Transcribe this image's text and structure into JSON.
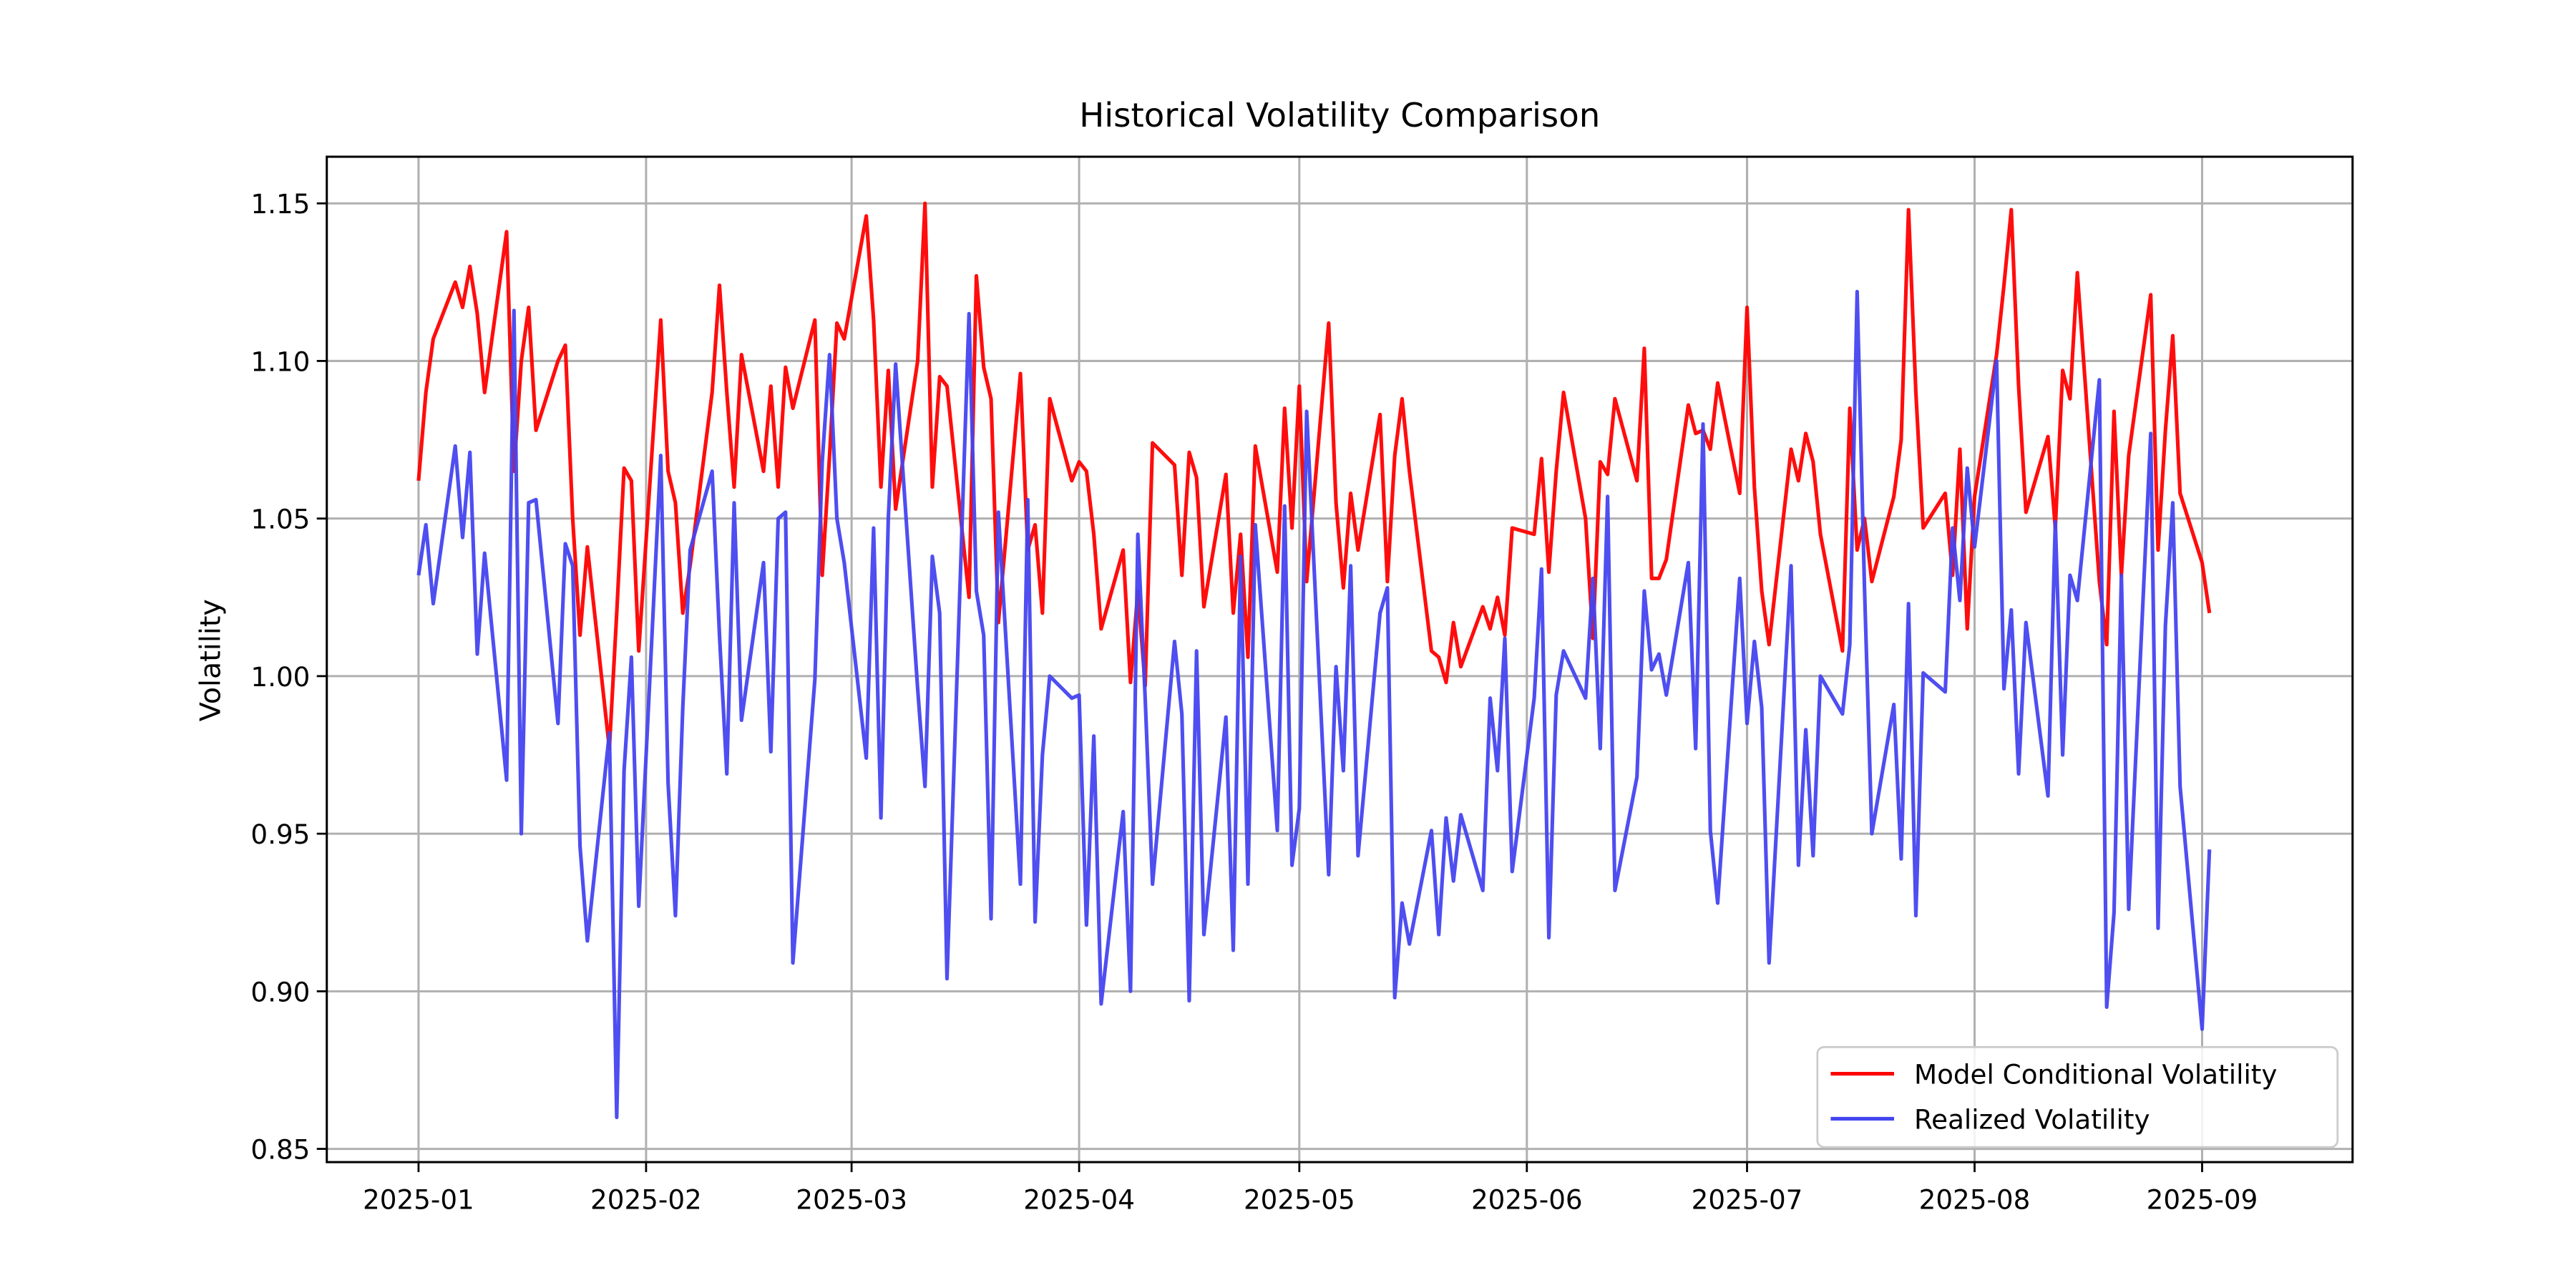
{
  "chart_data": {
    "type": "line",
    "title": "Historical Volatility Comparison",
    "ylabel": "Volatility",
    "x": [
      0,
      1,
      2,
      5,
      6,
      7,
      8,
      9,
      12,
      13,
      14,
      15,
      16,
      19,
      20,
      21,
      22,
      23,
      26,
      27,
      28,
      29,
      30,
      33,
      34,
      35,
      36,
      37,
      40,
      41,
      42,
      43,
      44,
      47,
      48,
      49,
      50,
      51,
      54,
      55,
      56,
      57,
      58,
      61,
      62,
      63,
      64,
      65,
      68,
      69,
      70,
      71,
      72,
      75,
      76,
      77,
      78,
      79,
      82,
      83,
      84,
      85,
      86,
      89,
      90,
      91,
      92,
      93,
      96,
      97,
      98,
      99,
      100,
      103,
      104,
      105,
      106,
      107,
      110,
      111,
      112,
      113,
      114,
      117,
      118,
      119,
      120,
      121,
      124,
      125,
      126,
      127,
      128,
      131,
      132,
      133,
      134,
      135,
      138,
      139,
      140,
      141,
      142,
      145,
      146,
      147,
      148,
      149,
      152,
      153,
      154,
      155,
      156,
      159,
      160,
      161,
      162,
      163,
      166,
      167,
      168,
      169,
      170,
      173,
      174,
      175,
      176,
      177,
      180,
      181,
      182,
      183,
      184,
      187,
      188,
      189,
      190,
      191,
      194,
      195,
      196,
      197,
      198,
      201,
      202,
      203,
      204,
      205,
      208,
      209,
      210,
      211,
      212,
      215,
      216,
      217,
      218,
      219,
      222,
      223,
      224,
      225,
      226,
      229,
      230,
      231,
      232,
      233,
      236,
      237,
      238,
      239,
      240,
      243,
      244
    ],
    "xlim": [
      -12.5,
      263.5
    ],
    "xticks": [
      {
        "value": 0,
        "label": "2025-01"
      },
      {
        "value": 31,
        "label": "2025-02"
      },
      {
        "value": 59,
        "label": "2025-03"
      },
      {
        "value": 90,
        "label": "2025-04"
      },
      {
        "value": 120,
        "label": "2025-05"
      },
      {
        "value": 151,
        "label": "2025-06"
      },
      {
        "value": 181,
        "label": "2025-07"
      },
      {
        "value": 212,
        "label": "2025-08"
      },
      {
        "value": 243,
        "label": "2025-09"
      }
    ],
    "ylim": [
      0.8458,
      1.1648
    ],
    "yticks": [
      0.85,
      {
        "value": 0.9,
        "label": "0.90"
      },
      0.95,
      {
        "value": 1.0,
        "label": "1.00"
      },
      1.05,
      {
        "value": 1.1,
        "label": "1.10"
      },
      1.15
    ],
    "grid": true,
    "legend": "lower right",
    "series": [
      {
        "name": "Model Conditional Volatility",
        "color": "#ff0000",
        "values": [
          1.062,
          1.09,
          1.107,
          1.125,
          1.117,
          1.13,
          1.115,
          1.09,
          1.141,
          1.065,
          1.1,
          1.117,
          1.078,
          1.1,
          1.105,
          1.05,
          1.013,
          1.041,
          0.977,
          1.02,
          1.066,
          1.062,
          1.008,
          1.113,
          1.065,
          1.055,
          1.02,
          1.035,
          1.09,
          1.124,
          1.09,
          1.06,
          1.102,
          1.065,
          1.092,
          1.06,
          1.098,
          1.085,
          1.113,
          1.032,
          1.07,
          1.112,
          1.107,
          1.146,
          1.113,
          1.06,
          1.097,
          1.053,
          1.1,
          1.15,
          1.06,
          1.095,
          1.092,
          1.025,
          1.127,
          1.098,
          1.088,
          1.017,
          1.096,
          1.04,
          1.048,
          1.02,
          1.088,
          1.062,
          1.068,
          1.065,
          1.045,
          1.015,
          1.04,
          0.998,
          1.027,
          0.997,
          1.074,
          1.067,
          1.032,
          1.071,
          1.063,
          1.022,
          1.064,
          1.02,
          1.045,
          1.006,
          1.073,
          1.033,
          1.085,
          1.047,
          1.092,
          1.03,
          1.112,
          1.055,
          1.028,
          1.058,
          1.04,
          1.083,
          1.03,
          1.07,
          1.088,
          1.065,
          1.008,
          1.006,
          0.998,
          1.017,
          1.003,
          1.022,
          1.015,
          1.025,
          1.013,
          1.047,
          1.045,
          1.069,
          1.033,
          1.065,
          1.09,
          1.05,
          1.012,
          1.068,
          1.064,
          1.088,
          1.062,
          1.104,
          1.031,
          1.031,
          1.037,
          1.086,
          1.077,
          1.078,
          1.072,
          1.093,
          1.058,
          1.117,
          1.06,
          1.027,
          1.01,
          1.072,
          1.062,
          1.077,
          1.068,
          1.045,
          1.008,
          1.085,
          1.04,
          1.05,
          1.03,
          1.057,
          1.075,
          1.148,
          1.09,
          1.047,
          1.058,
          1.032,
          1.072,
          1.015,
          1.057,
          1.102,
          1.124,
          1.148,
          1.092,
          1.052,
          1.076,
          1.047,
          1.097,
          1.088,
          1.128,
          1.03,
          1.01,
          1.084,
          1.032,
          1.07,
          1.121,
          1.04,
          1.078,
          1.108,
          1.058,
          1.036,
          1.02
        ]
      },
      {
        "name": "Realized Volatility",
        "color": "#4444f0",
        "values": [
          1.032,
          1.048,
          1.023,
          1.073,
          1.044,
          1.071,
          1.007,
          1.039,
          0.967,
          1.116,
          0.95,
          1.055,
          1.056,
          0.985,
          1.042,
          1.035,
          0.946,
          0.916,
          0.982,
          0.86,
          0.97,
          1.006,
          0.927,
          1.07,
          0.966,
          0.924,
          0.99,
          1.04,
          1.065,
          1.013,
          0.969,
          1.055,
          0.986,
          1.036,
          0.976,
          1.05,
          1.052,
          0.909,
          0.999,
          1.068,
          1.102,
          1.05,
          1.036,
          0.974,
          1.047,
          0.955,
          1.05,
          1.099,
          0.996,
          0.965,
          1.038,
          1.02,
          0.904,
          1.115,
          1.027,
          1.013,
          0.923,
          1.052,
          0.934,
          1.056,
          0.922,
          0.975,
          1.0,
          0.993,
          0.994,
          0.921,
          0.981,
          0.896,
          0.957,
          0.9,
          1.045,
          0.993,
          0.934,
          1.011,
          0.988,
          0.897,
          1.008,
          0.918,
          0.987,
          0.913,
          1.038,
          0.934,
          1.048,
          0.951,
          1.054,
          0.94,
          0.958,
          1.084,
          0.937,
          1.003,
          0.97,
          1.035,
          0.943,
          1.02,
          1.028,
          0.898,
          0.928,
          0.915,
          0.951,
          0.918,
          0.955,
          0.935,
          0.956,
          0.932,
          0.993,
          0.97,
          1.012,
          0.938,
          0.993,
          1.034,
          0.917,
          0.994,
          1.008,
          0.993,
          1.031,
          0.977,
          1.057,
          0.932,
          0.968,
          1.027,
          1.002,
          1.007,
          0.994,
          1.036,
          0.977,
          1.08,
          0.951,
          0.928,
          1.031,
          0.985,
          1.011,
          0.99,
          0.909,
          1.035,
          0.94,
          0.983,
          0.943,
          1.0,
          0.988,
          1.01,
          1.122,
          1.028,
          0.95,
          0.991,
          0.942,
          1.023,
          0.924,
          1.001,
          0.995,
          1.047,
          1.024,
          1.066,
          1.041,
          1.1,
          0.996,
          1.021,
          0.969,
          1.017,
          0.962,
          1.049,
          0.975,
          1.032,
          1.024,
          1.094,
          0.895,
          0.925,
          1.032,
          0.926,
          1.077,
          0.92,
          1.016,
          1.055,
          0.965,
          0.888,
          0.945
        ]
      }
    ]
  }
}
